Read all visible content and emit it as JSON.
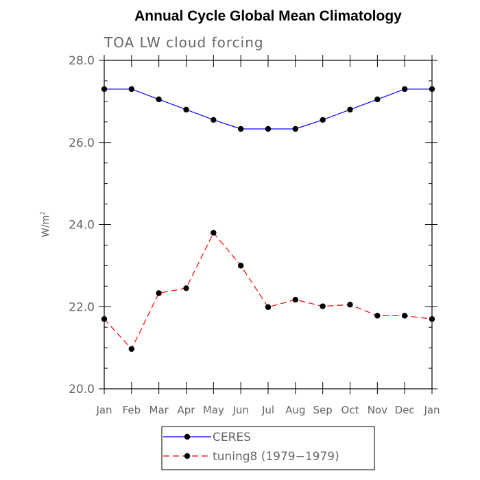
{
  "chart_data": {
    "type": "line",
    "title": "Annual Cycle Global Mean Climatology",
    "subtitle": "TOA LW cloud forcing",
    "ylabel": "W/m",
    "ylabel_sup": "2",
    "xlabel": "",
    "ylim": [
      20.0,
      28.0
    ],
    "yticks": [
      20.0,
      22.0,
      24.0,
      26.0,
      28.0
    ],
    "y_minor_step": 0.5,
    "ytick_labels": [
      "20.0",
      "22.0",
      "24.0",
      "26.0",
      "28.0"
    ],
    "categories": [
      "Jan",
      "Feb",
      "Mar",
      "Apr",
      "May",
      "Jun",
      "Jul",
      "Aug",
      "Sep",
      "Oct",
      "Nov",
      "Dec",
      "Jan"
    ],
    "series": [
      {
        "name": "CERES",
        "color": "#0000ff",
        "line_style": "solid",
        "marker": "filled-circle",
        "values": [
          27.3,
          27.3,
          27.05,
          26.8,
          26.55,
          26.33,
          26.33,
          26.33,
          26.55,
          26.8,
          27.05,
          27.3,
          27.3
        ]
      },
      {
        "name": "tuning8 (1979−1979)",
        "color": "#ff0000",
        "line_style": "dashed",
        "marker": "filled-circle",
        "values": [
          21.7,
          20.97,
          22.33,
          22.45,
          23.8,
          23.0,
          21.99,
          22.17,
          22.01,
          22.05,
          21.78,
          21.78,
          21.7
        ]
      }
    ],
    "grid": false,
    "legend_position": "bottom-center"
  }
}
